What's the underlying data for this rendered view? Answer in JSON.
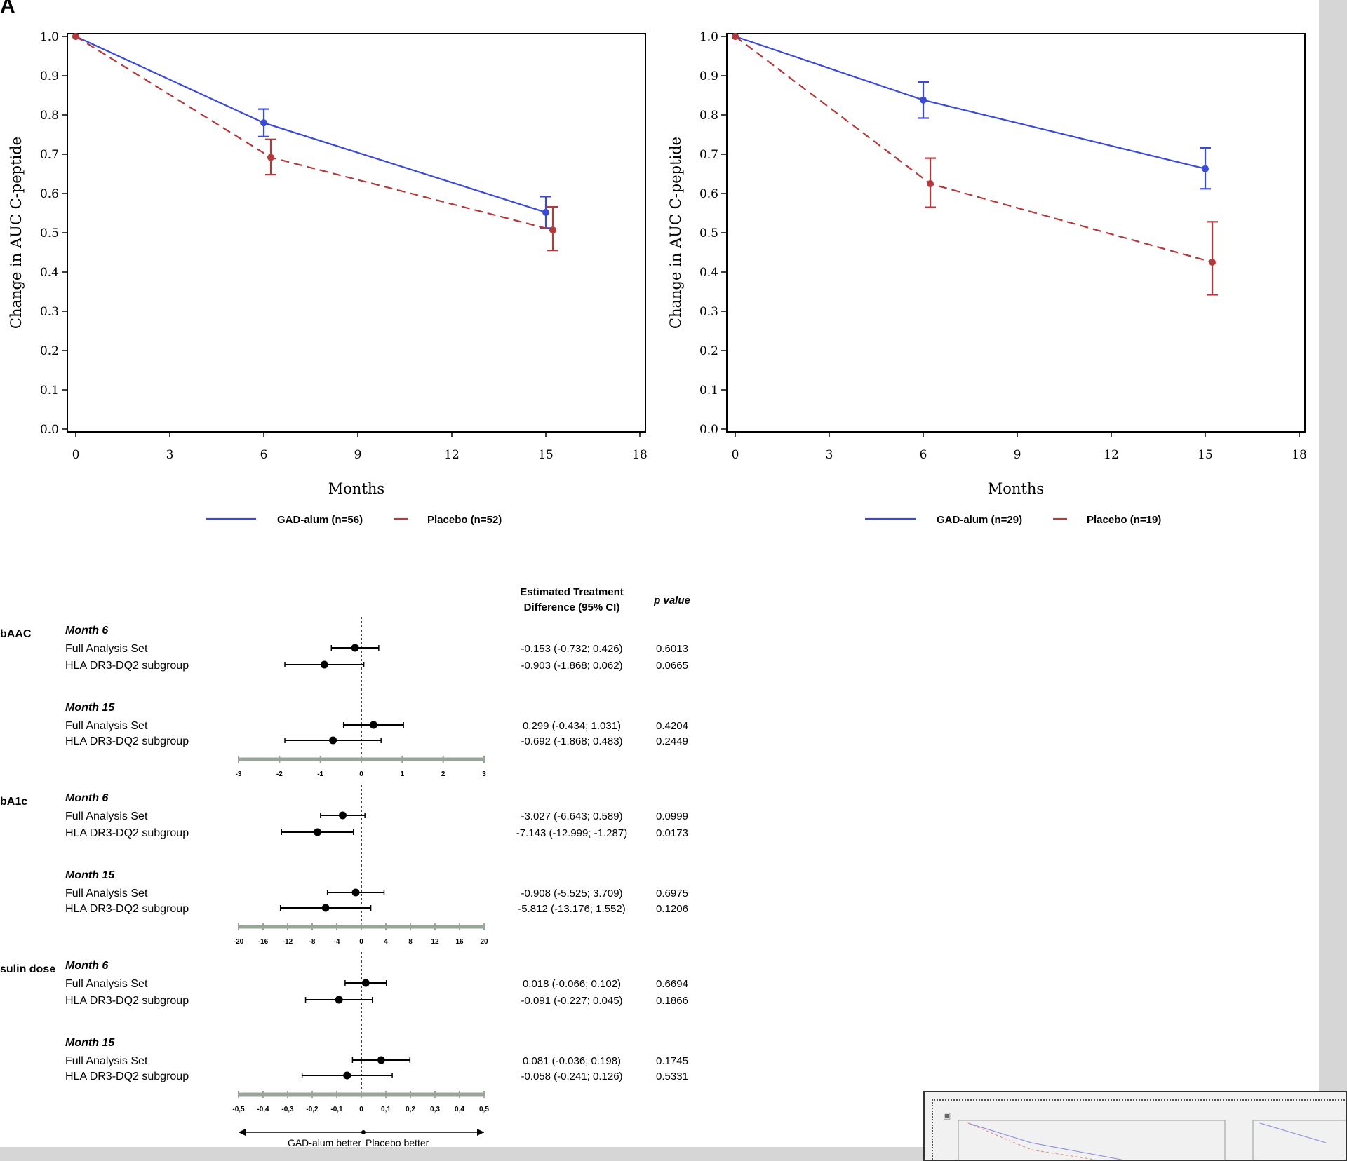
{
  "panel_letter": "A",
  "charts": {
    "left": {
      "ylabel": "Change in AUC C-peptide",
      "xlabel": "Months",
      "yticks": [
        "0.0",
        "0.1",
        "0.2",
        "0.3",
        "0.4",
        "0.5",
        "0.6",
        "0.7",
        "0.8",
        "0.9",
        "1.0"
      ],
      "xticks": [
        "0",
        "3",
        "6",
        "9",
        "12",
        "15",
        "18"
      ],
      "legend": [
        "GAD-alum (n=56)",
        "Placebo (n=52)"
      ]
    },
    "right": {
      "ylabel": "Change in AUC C-peptide",
      "xlabel": "Months",
      "yticks": [
        "0.0",
        "0.1",
        "0.2",
        "0.3",
        "0.4",
        "0.5",
        "0.6",
        "0.7",
        "0.8",
        "0.9",
        "1.0"
      ],
      "xticks": [
        "0",
        "3",
        "6",
        "9",
        "12",
        "15",
        "18"
      ],
      "legend": [
        "GAD-alum (n=29)",
        "Placebo (n=19)"
      ]
    }
  },
  "chart_data": [
    {
      "type": "line",
      "x": [
        0,
        6,
        15
      ],
      "series": [
        {
          "name": "GAD-alum (n=56)",
          "color": "#3a49d6",
          "values": [
            1.0,
            0.78,
            0.552
          ],
          "ci_low": [
            1.0,
            0.745,
            0.512
          ],
          "ci_high": [
            1.0,
            0.815,
            0.592
          ]
        },
        {
          "name": "Placebo (n=52)",
          "color": "#b23a3a",
          "values": [
            1.0,
            0.692,
            0.507
          ],
          "ci_low": [
            1.0,
            0.648,
            0.455
          ],
          "ci_high": [
            1.0,
            0.738,
            0.566
          ]
        }
      ],
      "xlabel": "Months",
      "ylabel": "Change in AUC C-peptide",
      "xlim": [
        0,
        18
      ],
      "ylim": [
        0,
        1.0
      ]
    },
    {
      "type": "line",
      "x": [
        0,
        6,
        15
      ],
      "series": [
        {
          "name": "GAD-alum (n=29)",
          "color": "#3a49d6",
          "values": [
            1.0,
            0.838,
            0.663
          ],
          "ci_low": [
            1.0,
            0.792,
            0.612
          ],
          "ci_high": [
            1.0,
            0.884,
            0.716
          ]
        },
        {
          "name": "Placebo (n=19)",
          "color": "#b23a3a",
          "values": [
            1.0,
            0.625,
            0.425
          ],
          "ci_low": [
            1.0,
            0.565,
            0.342
          ],
          "ci_high": [
            1.0,
            0.69,
            0.528
          ]
        }
      ],
      "xlabel": "Months",
      "ylabel": "Change in AUC C-peptide",
      "xlim": [
        0,
        18
      ],
      "ylim": [
        0,
        1.0
      ]
    },
    {
      "type": "scatter",
      "description_free": true,
      "header": {
        "estimate": "Estimated Treatment Difference (95% CI)",
        "estimate_line1": "Estimated Treatment",
        "estimate_line2": "Difference (95% CI)",
        "p": "p value"
      },
      "footer": {
        "left": "GAD-alum better",
        "right": "Placebo better"
      },
      "groups": [
        {
          "label": "bAAC",
          "axis_ticks": [
            -3,
            -2,
            -1,
            0,
            1,
            2,
            3
          ],
          "rows": [
            {
              "timepoint": "Month 6",
              "name": "Full Analysis Set",
              "est": -0.153,
              "lo": -0.732,
              "hi": 0.426,
              "ci_text": "-0.153 (-0.732; 0.426)",
              "p": "0.6013"
            },
            {
              "timepoint": "",
              "name": "HLA DR3-DQ2 subgroup",
              "est": -0.903,
              "lo": -1.868,
              "hi": 0.062,
              "ci_text": "-0.903 (-1.868; 0.062)",
              "p": "0.0665"
            },
            {
              "timepoint": "Month 15",
              "name": "Full Analysis Set",
              "est": 0.299,
              "lo": -0.434,
              "hi": 1.031,
              "ci_text": "0.299 (-0.434; 1.031)",
              "p": "0.4204"
            },
            {
              "timepoint": "",
              "name": "HLA DR3-DQ2 subgroup",
              "est": -0.692,
              "lo": -1.868,
              "hi": 0.483,
              "ci_text": "-0.692 (-1.868; 0.483)",
              "p": "0.2449"
            }
          ]
        },
        {
          "label": "bA1c",
          "axis_ticks": [
            -20,
            -16,
            -12,
            -8,
            -4,
            0,
            4,
            8,
            12,
            16,
            20
          ],
          "rows": [
            {
              "timepoint": "Month 6",
              "name": "Full Analysis Set",
              "est": -3.027,
              "lo": -6.643,
              "hi": 0.589,
              "ci_text": "-3.027 (-6.643; 0.589)",
              "p": "0.0999"
            },
            {
              "timepoint": "",
              "name": "HLA DR3-DQ2 subgroup",
              "est": -7.143,
              "lo": -12.999,
              "hi": -1.287,
              "ci_text": "-7.143 (-12.999; -1.287)",
              "p": "0.0173"
            },
            {
              "timepoint": "Month 15",
              "name": "Full Analysis Set",
              "est": -0.908,
              "lo": -5.525,
              "hi": 3.709,
              "ci_text": "-0.908 (-5.525; 3.709)",
              "p": "0.6975"
            },
            {
              "timepoint": "",
              "name": "HLA DR3-DQ2 subgroup",
              "est": -5.812,
              "lo": -13.176,
              "hi": 1.552,
              "ci_text": "-5.812 (-13.176; 1.552)",
              "p": "0.1206"
            }
          ]
        },
        {
          "label": "sulin dose",
          "axis_ticks": [
            "-0,5",
            "-0,4",
            "-0,3",
            "-0,2",
            "-0,1",
            "0",
            "0,1",
            "0,2",
            "0,3",
            "0,4",
            "0,5"
          ],
          "axis_min": -0.5,
          "axis_max": 0.5,
          "rows": [
            {
              "timepoint": "Month 6",
              "name": "Full Analysis Set",
              "est": 0.018,
              "lo": -0.066,
              "hi": 0.102,
              "ci_text": "0.018 (-0.066; 0.102)",
              "p": "0.6694"
            },
            {
              "timepoint": "",
              "name": "HLA DR3-DQ2 subgroup",
              "est": -0.091,
              "lo": -0.227,
              "hi": 0.045,
              "ci_text": "-0.091 (-0.227; 0.045)",
              "p": "0.1866"
            },
            {
              "timepoint": "Month 15",
              "name": "Full Analysis Set",
              "est": 0.081,
              "lo": -0.036,
              "hi": 0.198,
              "ci_text": "0.081 (-0.036; 0.198)",
              "p": "0.1745"
            },
            {
              "timepoint": "",
              "name": "HLA DR3-DQ2 subgroup",
              "est": -0.058,
              "lo": -0.241,
              "hi": 0.126,
              "ci_text": "-0.058 (-0.241; 0.126)",
              "p": "0.5331"
            }
          ]
        }
      ]
    }
  ]
}
